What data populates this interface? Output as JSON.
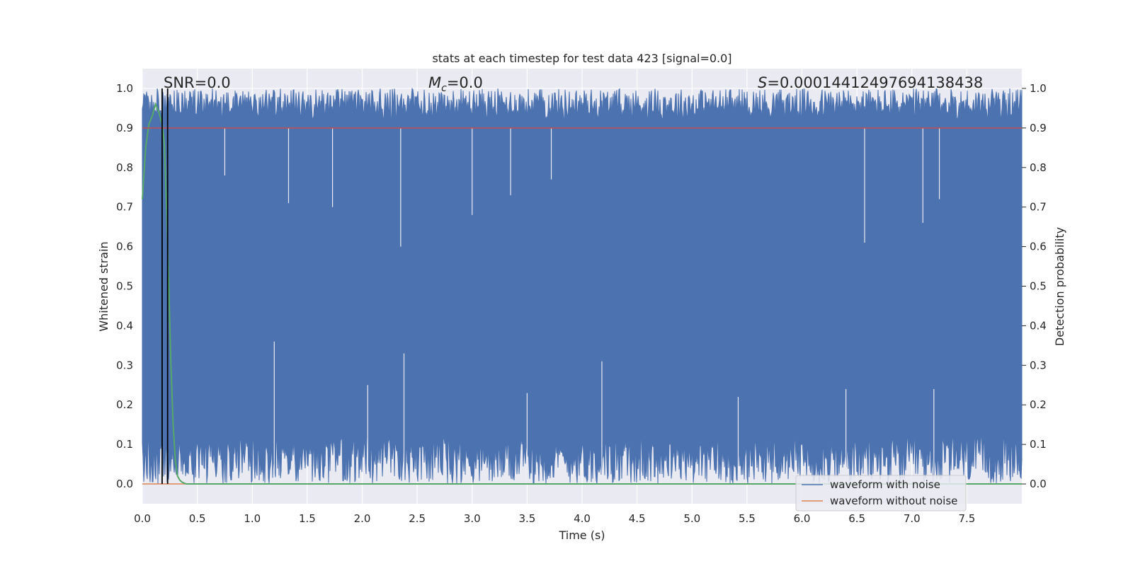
{
  "chart_data": {
    "type": "line",
    "title": "stats at each timestep for test data 423 [signal=0.0]",
    "xlabel": "Time (s)",
    "ylabel": "Whitened strain",
    "ylabel_right": "Detection probability",
    "xlim": [
      0.0,
      8.0
    ],
    "ylim": [
      -0.05,
      1.05
    ],
    "xticks": [
      "0.0",
      "0.5",
      "1.0",
      "1.5",
      "2.0",
      "2.5",
      "3.0",
      "3.5",
      "4.0",
      "4.5",
      "5.0",
      "5.5",
      "6.0",
      "6.5",
      "7.0",
      "7.5"
    ],
    "yticks": [
      "0.0",
      "0.1",
      "0.2",
      "0.3",
      "0.4",
      "0.5",
      "0.6",
      "0.7",
      "0.8",
      "0.9",
      "1.0"
    ],
    "yticks_right": [
      "0.0",
      "0.1",
      "0.2",
      "0.3",
      "0.4",
      "0.5",
      "0.6",
      "0.7",
      "0.8",
      "0.9",
      "1.0"
    ],
    "grid": true,
    "legend_position": "bottom-right",
    "colors": {
      "noise": "#4c72b0",
      "clean": "#dd8452",
      "probability": "#55a868",
      "threshold": "#c44e52",
      "marker": "#000000",
      "plot_bg": "#eaeaf2"
    },
    "annotations": {
      "snr": "SNR=0.0",
      "mc_symbol": "M",
      "mc_sub": "c",
      "mc_value": "=0.0",
      "s_symbol": "S",
      "s_value": "=0.00014412497694138438"
    },
    "noise_envelope": {
      "upper_typical": [
        0.92,
        1.0
      ],
      "lower_typical": [
        0.0,
        0.12
      ],
      "deep_drops": [
        {
          "x": 0.75,
          "y": 0.78
        },
        {
          "x": 1.33,
          "y": 0.71
        },
        {
          "x": 1.73,
          "y": 0.7
        },
        {
          "x": 2.35,
          "y": 0.6
        },
        {
          "x": 3.0,
          "y": 0.68
        },
        {
          "x": 3.35,
          "y": 0.73
        },
        {
          "x": 3.72,
          "y": 0.77
        },
        {
          "x": 6.57,
          "y": 0.61
        },
        {
          "x": 7.1,
          "y": 0.66
        },
        {
          "x": 7.25,
          "y": 0.72
        }
      ],
      "high_spikes": [
        {
          "x": 1.2,
          "y": 0.36
        },
        {
          "x": 2.38,
          "y": 0.33
        },
        {
          "x": 4.18,
          "y": 0.31
        },
        {
          "x": 2.05,
          "y": 0.25
        },
        {
          "x": 5.42,
          "y": 0.22
        },
        {
          "x": 6.4,
          "y": 0.24
        },
        {
          "x": 7.2,
          "y": 0.24
        },
        {
          "x": 3.5,
          "y": 0.23
        }
      ]
    },
    "series": [
      {
        "name": "waveform with noise",
        "role": "noise",
        "type": "band"
      },
      {
        "name": "waveform without noise",
        "role": "clean",
        "x": [
          0.0,
          8.0
        ],
        "y": [
          0.0,
          0.0
        ]
      },
      {
        "role": "probability",
        "axis": "right",
        "x": [
          0.0,
          0.03,
          0.06,
          0.09,
          0.12,
          0.15,
          0.18,
          0.2,
          0.22,
          0.24,
          0.26,
          0.28,
          0.3,
          0.32,
          0.34,
          0.36,
          0.38,
          0.4,
          1.0,
          8.0
        ],
        "y": [
          0.72,
          0.85,
          0.91,
          0.93,
          0.96,
          0.94,
          0.91,
          0.86,
          0.7,
          0.5,
          0.3,
          0.15,
          0.06,
          0.02,
          0.01,
          0.005,
          0.002,
          0.0,
          0.0,
          0.0
        ]
      },
      {
        "role": "threshold",
        "axis": "right",
        "x": [
          0.0,
          8.0
        ],
        "y": [
          0.9,
          0.9
        ]
      }
    ],
    "vlines": [
      0.18,
      0.23
    ],
    "legend": [
      "waveform with noise",
      "waveform without noise"
    ]
  }
}
